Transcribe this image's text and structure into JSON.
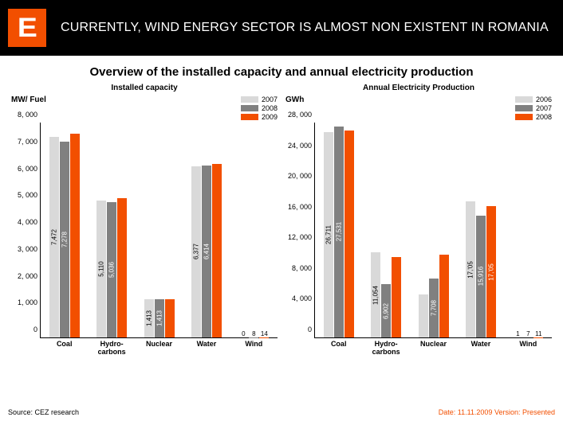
{
  "header": {
    "logo_letter": "E",
    "title": "CURRENTLY, WIND ENERGY SECTOR IS ALMOST NON EXISTENT IN ROMANIA"
  },
  "subtitle": "Overview of the installed capacity and annual electricity production",
  "colors": {
    "series": [
      "#d9d9d9",
      "#808080",
      "#f24f00"
    ],
    "logo_bg": "#f24f00",
    "header_bg": "#000000"
  },
  "chart_left": {
    "title": "Installed capacity",
    "axis_label": "MW/ Fuel",
    "legend": [
      "2007",
      "2008",
      "2009"
    ],
    "ymax": 8000,
    "ytick_step": 1000,
    "ytick_format": "comma_thousands",
    "categories": [
      "Coal",
      "Hydro-\ncarbons",
      "Nuclear",
      "Water",
      "Wind"
    ],
    "series": [
      {
        "color_idx": 0,
        "values": [
          7472,
          5110,
          1413,
          6377,
          0
        ]
      },
      {
        "color_idx": 1,
        "values": [
          7278,
          5036,
          1413,
          6414,
          8
        ]
      },
      {
        "color_idx": 2,
        "values": [
          7600,
          5200,
          1413,
          6450,
          14
        ]
      }
    ],
    "value_labels": [
      [
        "7,472",
        "5,110",
        "1,413",
        "6,377",
        "0"
      ],
      [
        "7,278",
        "5,036",
        "1,413",
        "6,414",
        "8"
      ],
      [
        "",
        "",
        "",
        "",
        "14"
      ]
    ]
  },
  "chart_right": {
    "title": "Annual Electricity Production",
    "axis_label": "GWh",
    "legend": [
      "2006",
      "2007",
      "2008"
    ],
    "ymax": 28000,
    "ytick_step": 4000,
    "ytick_format": "comma_thousands",
    "categories": [
      "Coal",
      "Hydro-\ncarbons",
      "Nuclear",
      "Water",
      "Wind"
    ],
    "series": [
      {
        "color_idx": 0,
        "values": [
          26711,
          11054,
          5600,
          17705,
          1
        ]
      },
      {
        "color_idx": 1,
        "values": [
          27531,
          6902,
          7708,
          15916,
          7
        ]
      },
      {
        "color_idx": 2,
        "values": [
          27000,
          10500,
          10800,
          17105,
          11
        ]
      }
    ],
    "value_labels": [
      [
        "26,711",
        "11,054",
        "",
        "17,'05",
        "1"
      ],
      [
        "27,531",
        "6,902",
        "7,708",
        "15,916",
        "7"
      ],
      [
        "",
        "",
        "",
        "17,'05",
        "11"
      ]
    ]
  },
  "footer": {
    "source": "Source: CEZ research",
    "meta": "Date: 11.11.2009 Version: Presented"
  }
}
